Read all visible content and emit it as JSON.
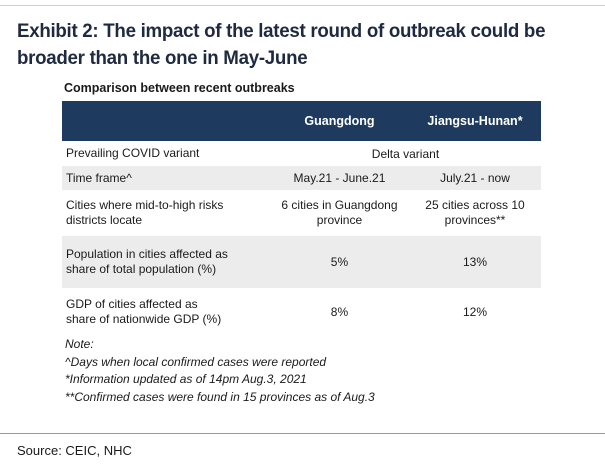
{
  "exhibit": {
    "title_line1": "Exhibit 2: The impact of the latest round of outbreak could be",
    "title_line2": "broader than the one in May-June",
    "subtitle": "Comparison between recent outbreaks"
  },
  "table": {
    "headers": [
      "",
      "Guangdong",
      "Jiangsu-Hunan*"
    ],
    "rows": [
      {
        "label": "Prevailing COVID variant",
        "merged_value": "Delta variant"
      },
      {
        "label": "Time frame^",
        "guangdong": "May.21 - June.21",
        "jiangsu_hunan": "July.21 - now"
      },
      {
        "label_line1": "Cities where mid-to-high risks",
        "label_line2": "districts locate",
        "guangdong_line1": "6 cities in Guangdong",
        "guangdong_line2": "province",
        "jiangsu_hunan_line1": "25 cities across 10",
        "jiangsu_hunan_line2": "provinces**"
      },
      {
        "label_line1": "Population in cities affected as",
        "label_line2": "share of total population (%)",
        "guangdong": "5%",
        "jiangsu_hunan": "13%"
      },
      {
        "label_line1": "GDP of cities affected as",
        "label_line2": "share of nationwide GDP (%)",
        "guangdong": "8%",
        "jiangsu_hunan": "12%"
      }
    ]
  },
  "notes": [
    "Note:",
    "^Days when local confirmed cases were reported",
    "*Information updated as of 14pm Aug.3, 2021",
    "**Confirmed cases were found in 15 provinces as of Aug.3"
  ],
  "source": "Source: CEIC, NHC",
  "colors": {
    "header_bg": "#1e3a5f",
    "row_shade": "#ececec",
    "title": "#1f2a40"
  }
}
